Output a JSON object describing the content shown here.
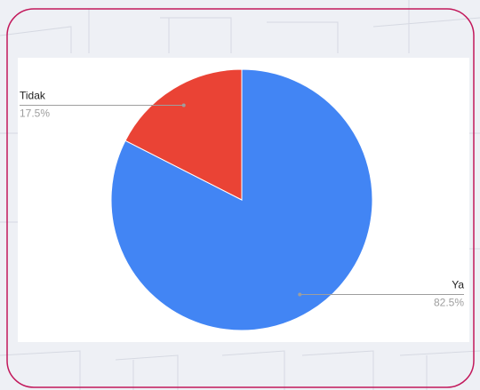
{
  "chart_data": {
    "type": "pie",
    "categories": [
      "Ya",
      "Tidak"
    ],
    "values": [
      82.5,
      17.5
    ],
    "value_labels": [
      "82.5%",
      "17.5%"
    ],
    "colors": [
      "#4285f4",
      "#ea4335"
    ]
  }
}
